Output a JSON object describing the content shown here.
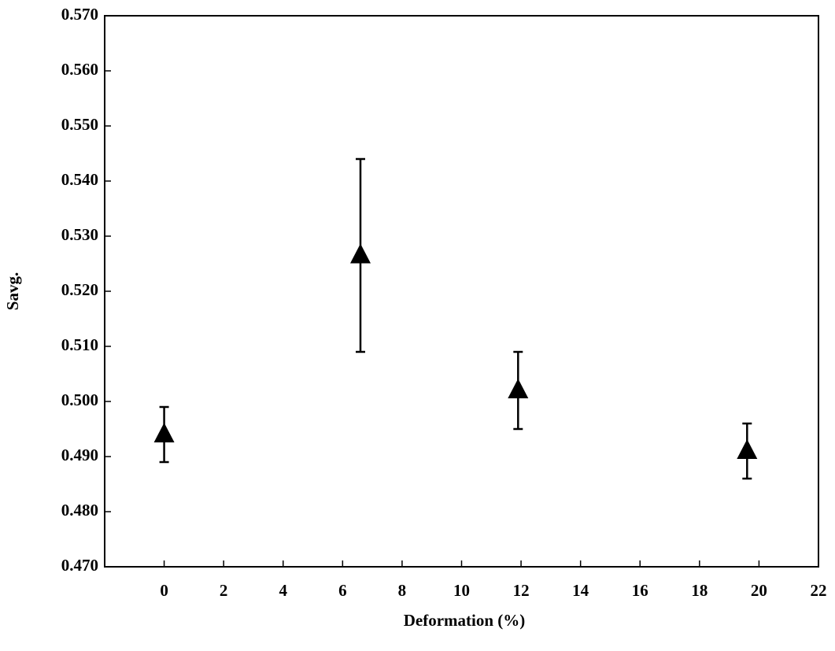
{
  "chart_data": {
    "type": "scatter",
    "x_label": "Deformation (%)",
    "y_label": "Savg.",
    "series": [
      {
        "color": "#000000",
        "x": [
          0,
          6.6,
          11.9,
          19.6
        ],
        "values": [
          0.494,
          0.5265,
          0.502,
          0.491
        ],
        "errors": [
          0.005,
          0.0175,
          0.007,
          0.005
        ]
      }
    ],
    "xlim": [
      -2,
      22
    ],
    "xticks": [
      0,
      2,
      4,
      6,
      8,
      10,
      12,
      14,
      16,
      18,
      20,
      22
    ],
    "ylim": [
      0.47,
      0.57
    ],
    "yticks": [
      {
        "value": 0.47,
        "label": "0.470"
      },
      {
        "value": 0.48,
        "label": "0.480"
      },
      {
        "value": 0.49,
        "label": "0.490"
      },
      {
        "value": 0.5,
        "label": "0.500"
      },
      {
        "value": 0.51,
        "label": "0.510"
      },
      {
        "value": 0.52,
        "label": "0.520"
      },
      {
        "value": 0.53,
        "label": "0.530"
      },
      {
        "value": 0.54,
        "label": "0.540"
      },
      {
        "value": 0.55,
        "label": "0.550"
      },
      {
        "value": 0.56,
        "label": "0.560"
      },
      {
        "value": 0.57,
        "label": "0.570"
      }
    ],
    "grid": false
  }
}
